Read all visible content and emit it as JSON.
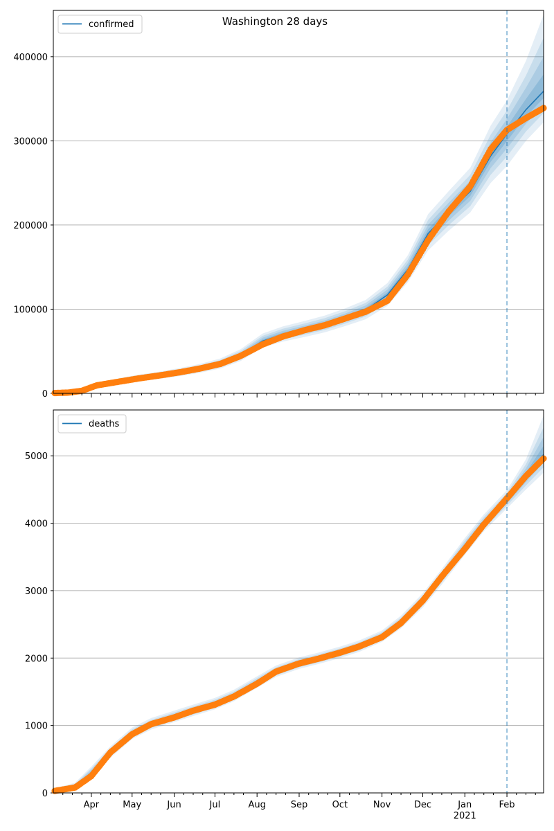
{
  "figure": {
    "title": "Washington 28 days"
  },
  "chart_data": [
    {
      "type": "line",
      "title": "Washington 28 days",
      "legend": {
        "label": "confirmed",
        "placement": "top-left"
      },
      "colors": {
        "forecast": "#1f77b4",
        "observed": "#ff7f0e",
        "band": "#1f77b4",
        "today_line": "#1f77b4",
        "grid": "#b0b0b0"
      },
      "ylim": [
        0,
        455000
      ],
      "yticks": [
        0,
        100000,
        200000,
        300000,
        400000
      ],
      "ytick_labels": [
        "0",
        "100000",
        "200000",
        "300000",
        "400000"
      ],
      "grid": "horizontal",
      "forecast_start": "2021-02-01",
      "forecast": {
        "x": [
          "2020-03-05",
          "2020-03-15",
          "2020-03-25",
          "2020-04-05",
          "2020-04-20",
          "2020-05-05",
          "2020-05-20",
          "2020-06-05",
          "2020-06-20",
          "2020-07-05",
          "2020-07-20",
          "2020-08-05",
          "2020-08-20",
          "2020-09-05",
          "2020-09-20",
          "2020-10-05",
          "2020-10-20",
          "2020-11-05",
          "2020-11-20",
          "2020-12-05",
          "2020-12-20",
          "2021-01-05",
          "2021-01-20",
          "2021-02-01",
          "2021-02-15",
          "2021-02-28"
        ],
        "y": [
          400,
          1000,
          3500,
          9000,
          13500,
          17500,
          21000,
          25000,
          29500,
          35000,
          45000,
          62000,
          70000,
          76000,
          82000,
          90000,
          99000,
          117000,
          147000,
          190000,
          215000,
          240000,
          282000,
          308000,
          337000,
          359000
        ],
        "lo": [
          0,
          400,
          2000,
          6500,
          10500,
          14000,
          17000,
          20500,
          24500,
          29500,
          38500,
          54500,
          61500,
          67000,
          72500,
          80000,
          88000,
          104000,
          132000,
          170000,
          193000,
          215000,
          250000,
          270000,
          300000,
          322000
        ],
        "hi": [
          1200,
          2500,
          6000,
          12500,
          17500,
          22000,
          25500,
          30000,
          35000,
          41500,
          52500,
          71000,
          79500,
          86000,
          92500,
          101000,
          111000,
          131000,
          164000,
          213000,
          240000,
          268000,
          318000,
          348000,
          395000,
          450000
        ]
      },
      "observed": {
        "x": [
          "2020-03-05",
          "2020-03-15",
          "2020-03-25",
          "2020-04-05",
          "2020-04-20",
          "2020-05-05",
          "2020-05-20",
          "2020-06-05",
          "2020-06-20",
          "2020-07-05",
          "2020-07-20",
          "2020-08-05",
          "2020-08-20",
          "2020-09-05",
          "2020-09-20",
          "2020-10-05",
          "2020-10-20",
          "2020-11-05",
          "2020-11-20",
          "2020-12-05",
          "2020-12-20",
          "2021-01-05",
          "2021-01-20",
          "2021-02-01",
          "2021-02-15",
          "2021-02-28"
        ],
        "y": [
          400,
          900,
          3000,
          9500,
          13500,
          17500,
          21000,
          25000,
          29500,
          35000,
          44500,
          58000,
          67500,
          75000,
          81000,
          89000,
          97000,
          110000,
          141000,
          182000,
          216000,
          246000,
          290000,
          313000,
          327000,
          339000
        ]
      }
    },
    {
      "type": "line",
      "legend": {
        "label": "deaths",
        "placement": "top-left"
      },
      "colors": {
        "forecast": "#1f77b4",
        "observed": "#ff7f0e",
        "band": "#1f77b4",
        "today_line": "#1f77b4",
        "grid": "#b0b0b0"
      },
      "ylim": [
        0,
        5680
      ],
      "yticks": [
        0,
        1000,
        2000,
        3000,
        4000,
        5000
      ],
      "ytick_labels": [
        "0",
        "1000",
        "2000",
        "3000",
        "4000",
        "5000"
      ],
      "grid": "horizontal",
      "xtick_labels": [
        "Apr",
        "May",
        "Jun",
        "Jul",
        "Aug",
        "Sep",
        "Oct",
        "Nov",
        "Dec",
        "Jan",
        "Feb"
      ],
      "xtick_dates": [
        "2020-04-01",
        "2020-05-01",
        "2020-06-01",
        "2020-07-01",
        "2020-08-01",
        "2020-09-01",
        "2020-10-01",
        "2020-11-01",
        "2020-12-01",
        "2021-01-01",
        "2021-02-01"
      ],
      "year_label": "2021",
      "xlim": [
        "2020-03-04",
        "2021-02-28"
      ],
      "forecast_start": "2021-02-01",
      "forecast": {
        "x": [
          "2020-03-05",
          "2020-03-20",
          "2020-04-01",
          "2020-04-15",
          "2020-05-01",
          "2020-05-15",
          "2020-06-01",
          "2020-06-15",
          "2020-07-01",
          "2020-07-15",
          "2020-08-01",
          "2020-08-15",
          "2020-09-01",
          "2020-09-15",
          "2020-10-01",
          "2020-10-15",
          "2020-11-01",
          "2020-11-15",
          "2020-12-01",
          "2020-12-15",
          "2021-01-01",
          "2021-01-15",
          "2021-02-01",
          "2021-02-15",
          "2021-02-28"
        ],
        "y": [
          30,
          90,
          300,
          600,
          880,
          1020,
          1130,
          1220,
          1320,
          1440,
          1640,
          1800,
          1920,
          1990,
          2080,
          2170,
          2320,
          2530,
          2850,
          3200,
          3650,
          4000,
          4350,
          4700,
          5020
        ],
        "lo": [
          0,
          40,
          220,
          520,
          800,
          940,
          1050,
          1140,
          1240,
          1360,
          1560,
          1720,
          1840,
          1910,
          2000,
          2090,
          2240,
          2440,
          2750,
          3090,
          3530,
          3880,
          4220,
          4500,
          4750
        ],
        "hi": [
          70,
          150,
          390,
          690,
          970,
          1110,
          1220,
          1310,
          1410,
          1530,
          1730,
          1890,
          2010,
          2080,
          2170,
          2260,
          2410,
          2630,
          2960,
          3320,
          3780,
          4130,
          4490,
          4950,
          5600
        ]
      },
      "observed": {
        "x": [
          "2020-03-05",
          "2020-03-20",
          "2020-04-01",
          "2020-04-15",
          "2020-05-01",
          "2020-05-15",
          "2020-06-01",
          "2020-06-15",
          "2020-07-01",
          "2020-07-15",
          "2020-08-01",
          "2020-08-15",
          "2020-09-01",
          "2020-09-15",
          "2020-10-01",
          "2020-10-15",
          "2020-11-01",
          "2020-11-15",
          "2020-12-01",
          "2020-12-15",
          "2021-01-01",
          "2021-01-15",
          "2021-02-01",
          "2021-02-15",
          "2021-02-28"
        ],
        "y": [
          30,
          80,
          250,
          600,
          870,
          1020,
          1120,
          1220,
          1310,
          1430,
          1620,
          1800,
          1920,
          1990,
          2080,
          2170,
          2310,
          2520,
          2850,
          3210,
          3620,
          3980,
          4370,
          4700,
          4960
        ]
      }
    }
  ]
}
